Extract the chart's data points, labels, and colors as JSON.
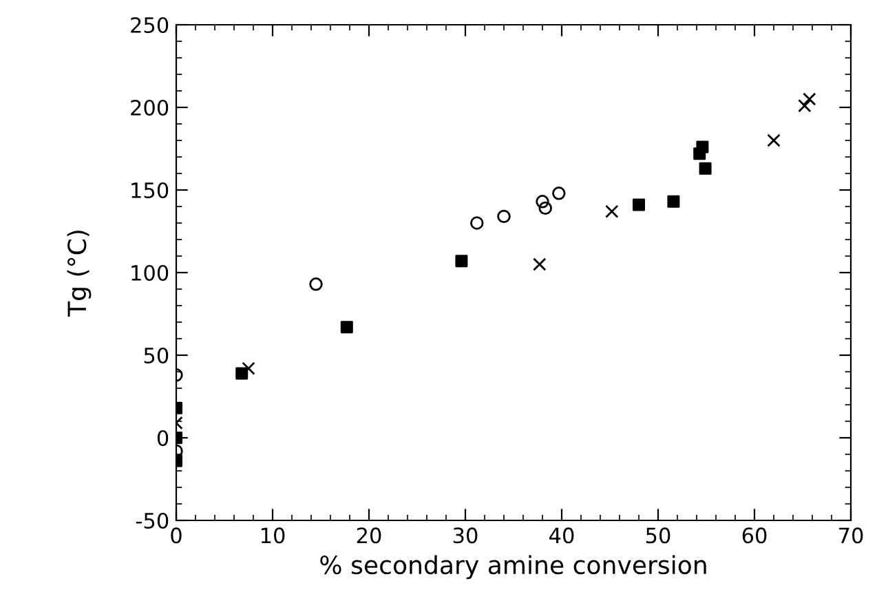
{
  "chart_data": {
    "type": "scatter",
    "xlabel": "% secondary amine conversion",
    "ylabel": "Tg (°C)",
    "xlim": [
      0,
      70
    ],
    "xticks": [
      0,
      10,
      20,
      30,
      40,
      50,
      60,
      70
    ],
    "ylim": [
      -50,
      250
    ],
    "yticks": [
      -50,
      0,
      50,
      100,
      150,
      200,
      250
    ],
    "grid": false,
    "series": [
      {
        "color": "#000000",
        "marker": "circle",
        "x": [
          0,
          0,
          14.5,
          31.2,
          34,
          38,
          38.3,
          39.7
        ],
        "values": [
          38,
          -8,
          93,
          130,
          134,
          143,
          139,
          148
        ]
      },
      {
        "color": "#000000",
        "marker": "square",
        "x": [
          0,
          0,
          0,
          6.8,
          17.7,
          29.6,
          48,
          51.6,
          54.3,
          54.6,
          54.9
        ],
        "values": [
          18,
          0,
          -14,
          39,
          67,
          107,
          141,
          143,
          172,
          176,
          163
        ]
      },
      {
        "color": "#000000",
        "marker": "cross",
        "x": [
          0,
          7.5,
          37.7,
          45.2,
          62,
          65.2,
          65.7
        ],
        "values": [
          9,
          42,
          105,
          137,
          180,
          201,
          205
        ]
      }
    ]
  }
}
